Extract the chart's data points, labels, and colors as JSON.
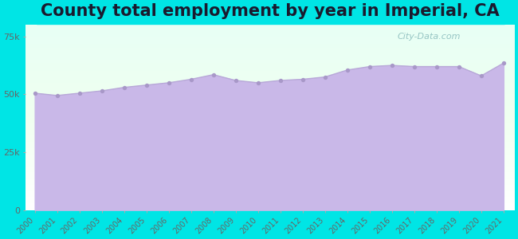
{
  "title": "County total employment by year in Imperial, CA",
  "years": [
    2000,
    2001,
    2002,
    2003,
    2004,
    2005,
    2006,
    2007,
    2008,
    2009,
    2010,
    2011,
    2012,
    2013,
    2014,
    2015,
    2016,
    2017,
    2018,
    2019,
    2020,
    2021
  ],
  "values": [
    50500,
    49500,
    50500,
    51500,
    53000,
    54000,
    55000,
    56500,
    58500,
    56000,
    55000,
    56000,
    56500,
    57500,
    60500,
    62000,
    62500,
    62000,
    62000,
    62000,
    58000,
    63500
  ],
  "ylim": [
    0,
    80000
  ],
  "yticks": [
    0,
    25000,
    50000,
    75000
  ],
  "ytick_labels": [
    "0",
    "25k",
    "50k",
    "75k"
  ],
  "fill_color": "#c9b8e8",
  "line_color": "#b8a8d8",
  "dot_color": "#a898c8",
  "bg_color": "#00e5e5",
  "plot_bg_color": "#ffffff",
  "title_fontsize": 15,
  "tick_fontsize": 8,
  "watermark": "City-Data.com"
}
